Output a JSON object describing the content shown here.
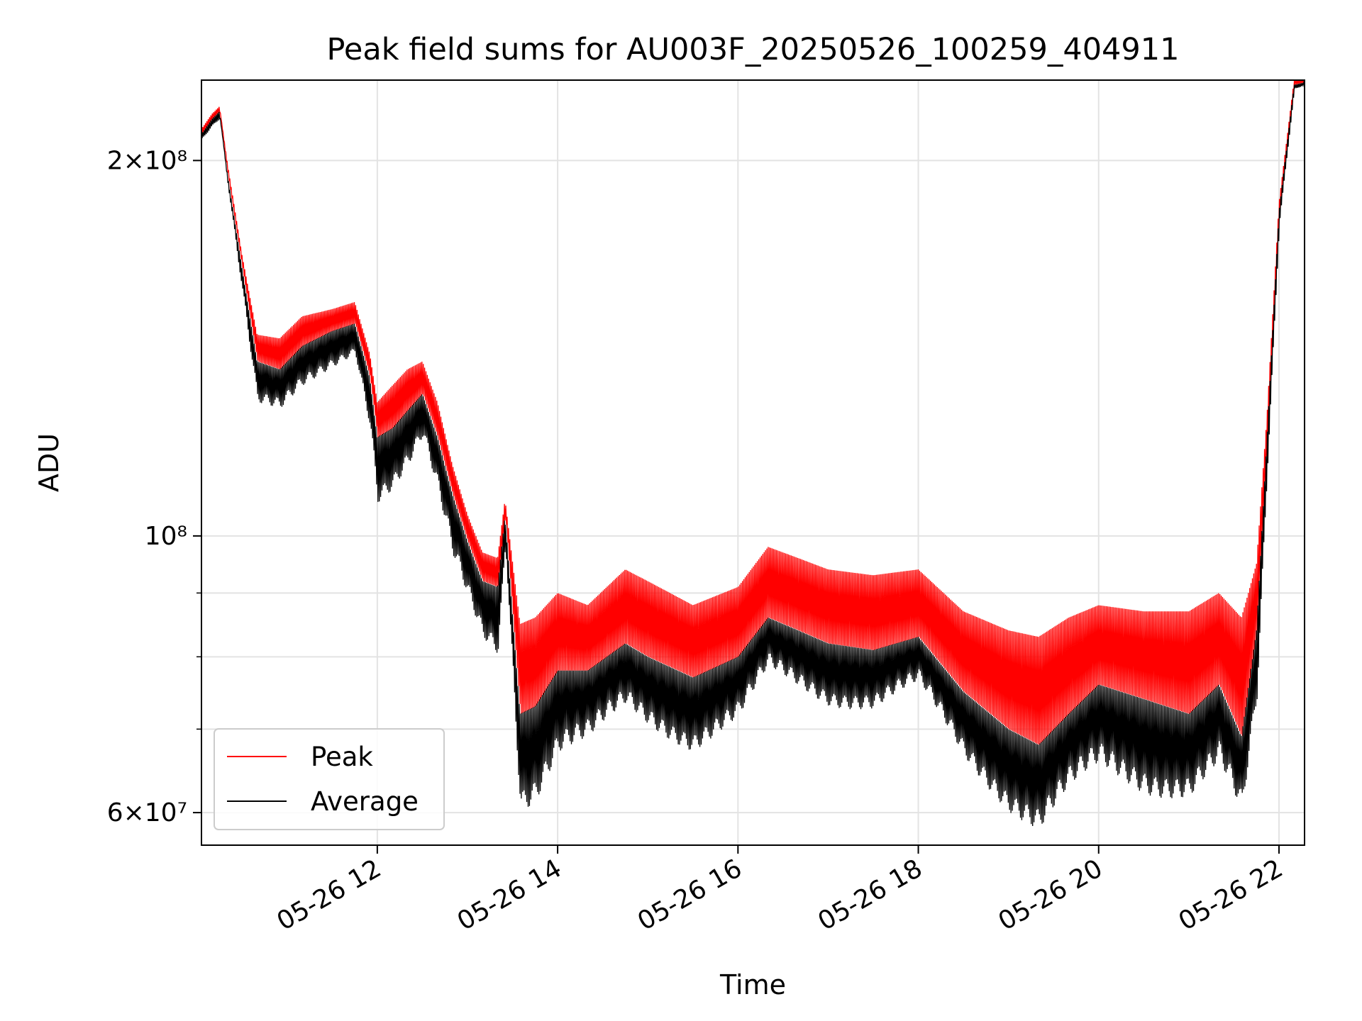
{
  "chart_data": {
    "type": "line",
    "title": "Peak field sums for AU003F_20250526_100259_404911",
    "xlabel": "Time",
    "ylabel": "ADU",
    "yscale": "log",
    "ylim": [
      56500000,
      232000000
    ],
    "xlim": [
      "2025-05-26 10:03",
      "2025-05-26 22:17"
    ],
    "grid": true,
    "legend_position": "lower-left",
    "x_ticks": [
      "05-26 12",
      "05-26 14",
      "05-26 16",
      "05-26 18",
      "05-26 20",
      "05-26 22"
    ],
    "y_ticks": [
      {
        "value": 60000000,
        "label": "6×10⁷"
      },
      {
        "value": 100000000,
        "label": "10⁸"
      },
      {
        "value": 200000000,
        "label": "2×10⁸"
      }
    ],
    "y_minor_ticks": [
      70000000,
      80000000,
      90000000
    ],
    "x": [
      "10:03",
      "10:10",
      "10:15",
      "10:20",
      "10:30",
      "10:40",
      "10:55",
      "11:10",
      "11:30",
      "11:45",
      "11:55",
      "12:00",
      "12:10",
      "12:20",
      "12:30",
      "12:40",
      "12:50",
      "13:00",
      "13:10",
      "13:20",
      "13:25",
      "13:35",
      "13:45",
      "14:00",
      "14:20",
      "14:45",
      "15:00",
      "15:30",
      "16:00",
      "16:20",
      "16:40",
      "17:00",
      "17:30",
      "18:00",
      "18:30",
      "19:00",
      "19:20",
      "19:40",
      "20:00",
      "20:30",
      "21:00",
      "21:20",
      "21:35",
      "21:45",
      "21:52",
      "22:00",
      "22:10",
      "22:17"
    ],
    "series": [
      {
        "name": "Peak",
        "color": "#ff0000",
        "values": [
          212000000,
          218000000,
          221000000,
          200000000,
          168000000,
          145000000,
          144000000,
          150000000,
          152000000,
          154000000,
          140000000,
          128000000,
          132000000,
          136000000,
          138000000,
          128000000,
          114000000,
          104000000,
          97000000,
          96000000,
          107000000,
          85000000,
          86000000,
          90000000,
          88000000,
          94000000,
          92000000,
          88000000,
          91000000,
          98000000,
          96000000,
          94000000,
          93000000,
          94000000,
          87000000,
          84000000,
          83000000,
          86000000,
          88000000,
          87000000,
          87000000,
          90000000,
          86000000,
          95000000,
          125000000,
          185000000,
          232000000,
          232000000
        ]
      },
      {
        "name": "Average",
        "color": "#000000",
        "values": [
          210000000,
          216000000,
          219000000,
          196000000,
          164000000,
          138000000,
          136000000,
          142000000,
          146000000,
          148000000,
          134000000,
          120000000,
          122000000,
          126000000,
          130000000,
          120000000,
          108000000,
          99000000,
          92000000,
          91000000,
          104000000,
          72000000,
          73000000,
          78000000,
          78000000,
          82000000,
          80000000,
          77000000,
          80000000,
          86000000,
          84000000,
          82000000,
          81000000,
          83000000,
          75000000,
          70000000,
          68000000,
          72000000,
          76000000,
          74000000,
          72000000,
          76000000,
          69000000,
          84000000,
          120000000,
          182000000,
          230000000,
          231000000
        ]
      },
      {
        "name": "",
        "color": "#000000",
        "values": [
          208000000,
          213000000,
          216000000,
          192000000,
          156000000,
          126000000,
          124000000,
          130000000,
          136000000,
          140000000,
          122000000,
          106000000,
          108000000,
          112000000,
          118000000,
          106000000,
          94000000,
          88000000,
          82000000,
          80000000,
          98000000,
          60000000,
          61000000,
          66000000,
          67000000,
          72000000,
          70000000,
          67000000,
          70000000,
          77000000,
          75000000,
          73000000,
          72000000,
          75000000,
          66000000,
          60000000,
          57000000,
          61000000,
          64000000,
          62000000,
          61000000,
          64000000,
          58000000,
          72000000,
          112000000,
          178000000,
          228000000,
          230000000
        ]
      }
    ]
  }
}
